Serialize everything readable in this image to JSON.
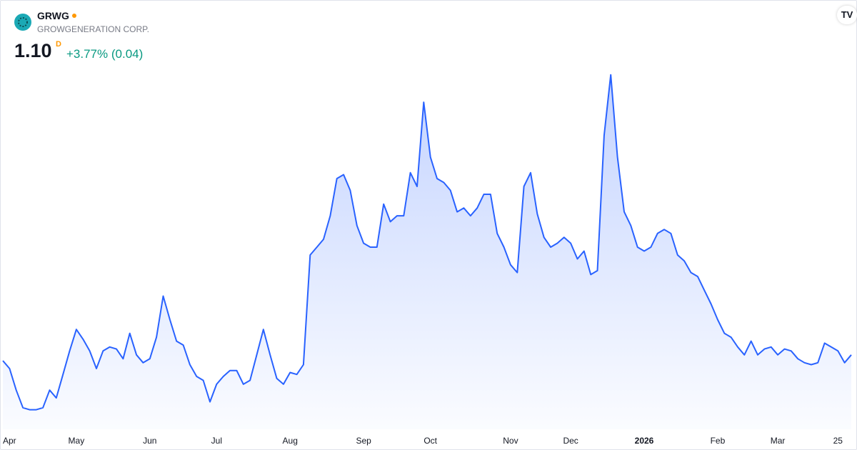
{
  "header": {
    "symbol": "GRWG",
    "company": "GROWGENERATION CORP.",
    "price": "1.10",
    "interval": "D",
    "change": "+3.77% (0.04)"
  },
  "chart_data": {
    "type": "area",
    "color": "#2962ff",
    "values": [
      1.07,
      1.03,
      0.92,
      0.83,
      0.82,
      0.82,
      0.83,
      0.92,
      0.88,
      1.0,
      1.12,
      1.23,
      1.18,
      1.12,
      1.03,
      1.12,
      1.14,
      1.13,
      1.08,
      1.21,
      1.1,
      1.06,
      1.08,
      1.19,
      1.4,
      1.28,
      1.17,
      1.15,
      1.05,
      0.99,
      0.97,
      0.86,
      0.95,
      0.99,
      1.02,
      1.02,
      0.95,
      0.97,
      1.1,
      1.23,
      1.1,
      0.98,
      0.95,
      1.01,
      1.0,
      1.05,
      1.61,
      1.65,
      1.69,
      1.81,
      2.0,
      2.02,
      1.94,
      1.76,
      1.67,
      1.65,
      1.65,
      1.87,
      1.78,
      1.81,
      1.81,
      2.03,
      1.96,
      2.39,
      2.11,
      2.0,
      1.98,
      1.94,
      1.83,
      1.85,
      1.81,
      1.85,
      1.92,
      1.92,
      1.72,
      1.65,
      1.56,
      1.52,
      1.96,
      2.03,
      1.82,
      1.7,
      1.65,
      1.67,
      1.7,
      1.67,
      1.59,
      1.63,
      1.51,
      1.53,
      2.22,
      2.53,
      2.11,
      1.83,
      1.76,
      1.65,
      1.63,
      1.65,
      1.72,
      1.74,
      1.72,
      1.61,
      1.58,
      1.52,
      1.5,
      1.43,
      1.36,
      1.28,
      1.21,
      1.19,
      1.14,
      1.1,
      1.17,
      1.1,
      1.13,
      1.14,
      1.1,
      1.13,
      1.12,
      1.08,
      1.06,
      1.05,
      1.06,
      1.16,
      1.14,
      1.12,
      1.06,
      1.1
    ],
    "xlim": [
      0,
      127
    ],
    "xticks": [
      {
        "value": 1,
        "label": "Apr"
      },
      {
        "value": 11,
        "label": "May"
      },
      {
        "value": 22,
        "label": "Jun"
      },
      {
        "value": 32,
        "label": "Jul"
      },
      {
        "value": 43,
        "label": "Aug"
      },
      {
        "value": 54,
        "label": "Sep"
      },
      {
        "value": 64,
        "label": "Oct"
      },
      {
        "value": 76,
        "label": "Nov"
      },
      {
        "value": 85,
        "label": "Dec"
      },
      {
        "value": 96,
        "label": "2026"
      },
      {
        "value": 107,
        "label": "Feb"
      },
      {
        "value": 116,
        "label": "Mar"
      },
      {
        "value": 125,
        "label": "25"
      }
    ],
    "ylim": [
      0.72,
      2.58
    ]
  }
}
